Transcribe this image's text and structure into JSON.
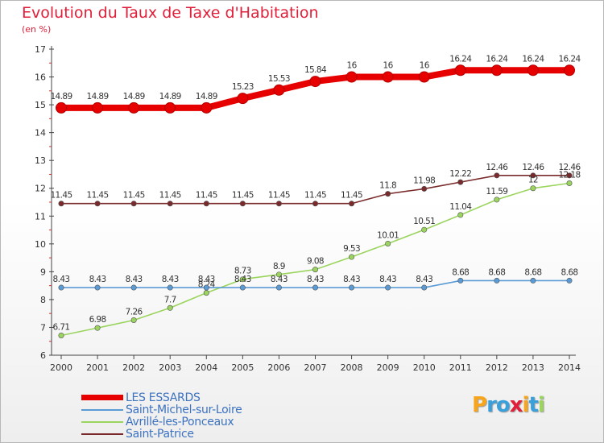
{
  "chart_data": {
    "type": "line",
    "title": "Evolution du Taux de Taxe d'Habitation",
    "ylabel": "(en %)",
    "xlabel": "",
    "categories": [
      "2000",
      "2001",
      "2002",
      "2003",
      "2004",
      "2005",
      "2006",
      "2007",
      "2008",
      "2009",
      "2010",
      "2011",
      "2012",
      "2013",
      "2014"
    ],
    "ylim": [
      6,
      17
    ],
    "yticks": [
      "6",
      "7",
      "8",
      "9",
      "10",
      "11",
      "12",
      "13",
      "14",
      "15",
      "16",
      "17"
    ],
    "grid": false,
    "legend_position": "bottom-left",
    "series": [
      {
        "name": "LES ESSARDS",
        "color": "#e60000",
        "values": [
          14.89,
          14.89,
          14.89,
          14.89,
          14.89,
          15.23,
          15.53,
          15.84,
          16,
          16,
          16,
          16.24,
          16.24,
          16.24,
          16.24
        ],
        "labels": [
          "14.89",
          "14.89",
          "14.89",
          "14.89",
          "14.89",
          "15.23",
          "15.53",
          "15.84",
          "16",
          "16",
          "16",
          "16.24",
          "16.24",
          "16.24",
          "16.24"
        ]
      },
      {
        "name": "Saint-Michel-sur-Loire",
        "color": "#5b9bd5",
        "values": [
          8.43,
          8.43,
          8.43,
          8.43,
          8.43,
          8.43,
          8.43,
          8.43,
          8.43,
          8.43,
          8.43,
          8.68,
          8.68,
          8.68,
          8.68
        ],
        "labels": [
          "8.43",
          "8.43",
          "8.43",
          "8.43",
          "8.43",
          "8.43",
          "8.43",
          "8.43",
          "8.43",
          "8.43",
          "8.43",
          "8.68",
          "8.68",
          "8.68",
          "8.68"
        ]
      },
      {
        "name": "Avrillé-les-Ponceaux",
        "color": "#9bd45e",
        "values": [
          6.71,
          6.98,
          7.26,
          7.7,
          8.24,
          8.73,
          8.9,
          9.08,
          9.53,
          10.01,
          10.51,
          11.04,
          11.59,
          12,
          12.18
        ],
        "labels": [
          "6.71",
          "6.98",
          "7.26",
          "7.7",
          "8.24",
          "8.73",
          "8.9",
          "9.08",
          "9.53",
          "10.01",
          "10.51",
          "11.04",
          "11.59",
          "12",
          "12.18"
        ]
      },
      {
        "name": "Saint-Patrice",
        "color": "#7a2a2a",
        "values": [
          11.45,
          11.45,
          11.45,
          11.45,
          11.45,
          11.45,
          11.45,
          11.45,
          11.45,
          11.8,
          11.98,
          12.22,
          12.46,
          12.46,
          12.46
        ],
        "labels": [
          "11.45",
          "11.45",
          "11.45",
          "11.45",
          "11.45",
          "11.45",
          "11.45",
          "11.45",
          "11.45",
          "11.8",
          "11.98",
          "12.22",
          "12.46",
          "12.46",
          "12.46"
        ]
      }
    ]
  },
  "brand": {
    "letters": [
      "P",
      "r",
      "o",
      "x",
      "i",
      "t",
      "i"
    ],
    "colors": [
      "#f7a51c",
      "#3aa0dc",
      "#3aa0dc",
      "#e0203a",
      "#f7a51c",
      "#3aa0dc",
      "#9bd45e"
    ]
  }
}
